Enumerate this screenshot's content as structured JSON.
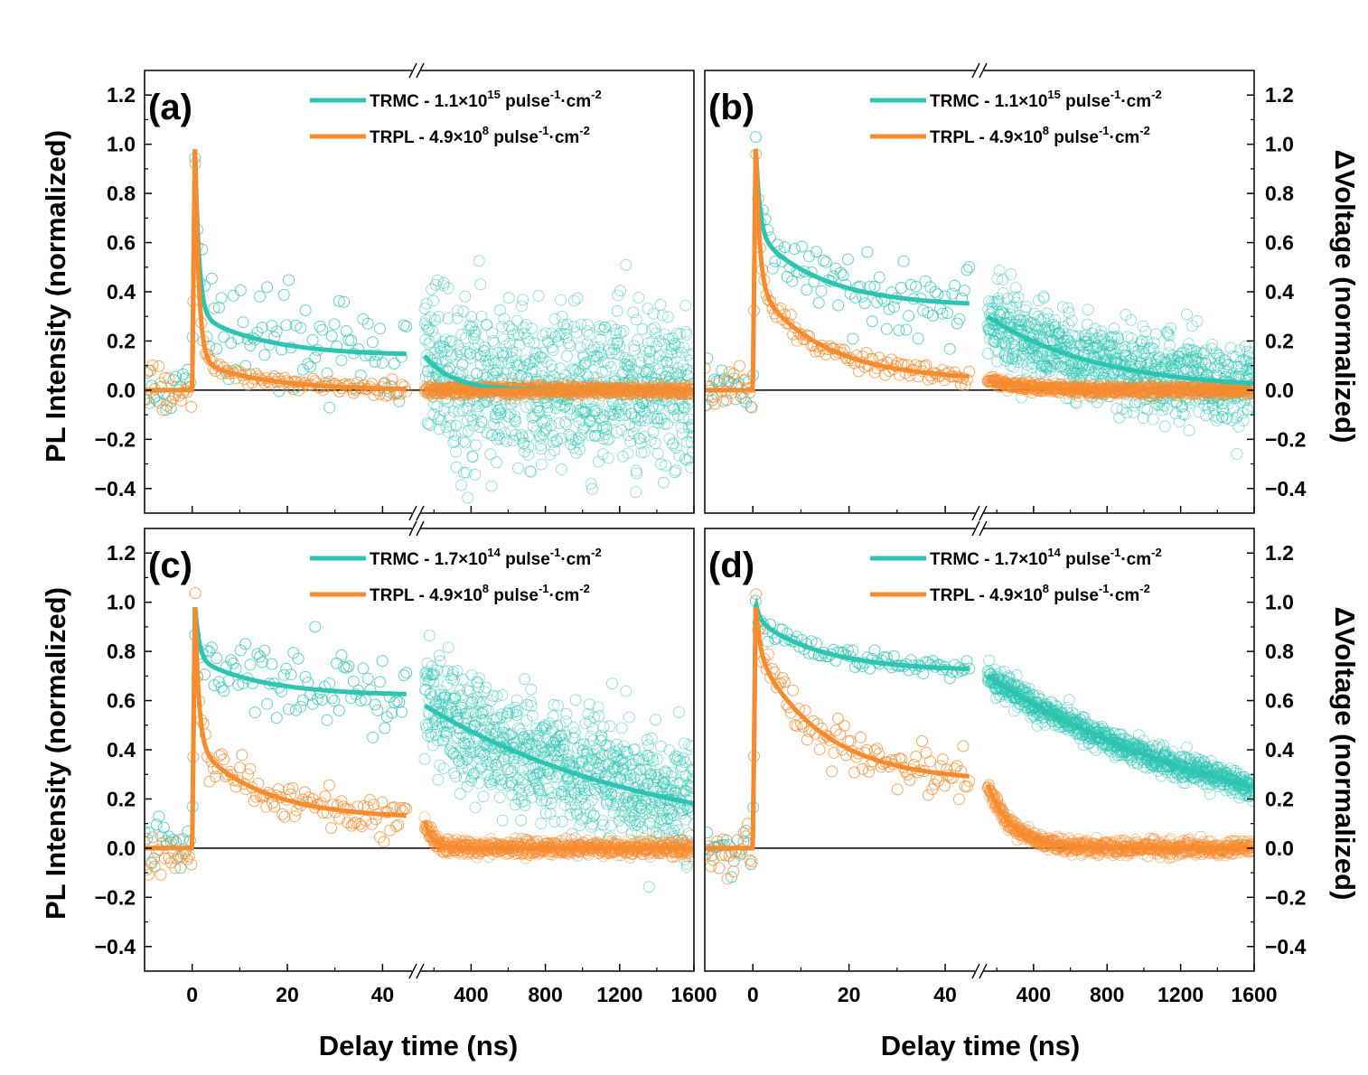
{
  "figure": {
    "x_axis_label": "Delay time (ns)",
    "y_axis_label_left": "PL Intensity (normalized)",
    "y_axis_label_right": "ΔVoltage (normalized)"
  },
  "colors": {
    "trmc": "#2ec4b2",
    "trpl": "#f78b2e"
  },
  "chart_data": [
    {
      "type": "scatter",
      "panel": "(a)",
      "legend": [
        {
          "series": "TRMC",
          "prefix": "TRMC - 1.1×10",
          "exp": "15",
          "suffix": " pulse",
          "exp2": "-1",
          "suffix2": "·cm",
          "exp3": "-2"
        },
        {
          "series": "TRPL",
          "prefix": "TRPL - 4.9×10",
          "exp": "8",
          "suffix": "  pulse",
          "exp2": "-1",
          "suffix2": "·cm",
          "exp3": "-2"
        }
      ],
      "x_segment1": {
        "range": [
          -10,
          46
        ],
        "ticks": [
          "0",
          "20",
          "40"
        ],
        "tick_values": [
          0,
          20,
          40
        ]
      },
      "x_segment2": {
        "range": [
          150,
          1600
        ],
        "ticks": [
          "400",
          "800",
          "1200",
          "1600"
        ],
        "tick_values": [
          400,
          800,
          1200,
          1600
        ]
      },
      "ylim": [
        -0.5,
        1.3
      ],
      "yticks": [
        "-0.4",
        "-0.2",
        "0.0",
        "0.2",
        "0.4",
        "0.6",
        "0.8",
        "1.0",
        "1.2"
      ],
      "series": [
        {
          "name": "TRMC",
          "plateau_seg1": 0.14,
          "seg2_start": 0.14,
          "seg2_tau_ns": 150,
          "noise_seg1": 0.12,
          "noise_seg2": 0.16
        },
        {
          "name": "TRPL",
          "plateau_seg1": 0.0,
          "seg2_start": 0.0,
          "seg2_tau_ns": 100,
          "noise_seg1": 0.015,
          "noise_seg2": 0.01
        }
      ]
    },
    {
      "type": "scatter",
      "panel": "(b)",
      "legend": [
        {
          "series": "TRMC",
          "prefix": "TRMC - 1.1×10",
          "exp": "15",
          "suffix": " pulse",
          "exp2": "-1",
          "suffix2": "·cm",
          "exp3": "-2"
        },
        {
          "series": "TRPL",
          "prefix": "TRPL - 4.9×10",
          "exp": "8",
          "suffix": "  pulse",
          "exp2": "-1",
          "suffix2": "·cm",
          "exp3": "-2"
        }
      ],
      "x_segment1": {
        "range": [
          -10,
          46
        ],
        "ticks": [
          "0",
          "20",
          "40"
        ],
        "tick_values": [
          0,
          20,
          40
        ]
      },
      "x_segment2": {
        "range": [
          150,
          1600
        ],
        "ticks": [
          "400",
          "800",
          "1200",
          "1600"
        ],
        "tick_values": [
          400,
          800,
          1200,
          1600
        ]
      },
      "ylim": [
        -0.5,
        1.3
      ],
      "yticks": [
        "-0.4",
        "-0.2",
        "0.0",
        "0.2",
        "0.4",
        "0.6",
        "0.8",
        "1.0",
        "1.2"
      ],
      "series": [
        {
          "name": "TRMC",
          "plateau_seg1": 0.34,
          "seg2_start": 0.3,
          "seg2_tau_ns": 600,
          "noise_seg1": 0.07,
          "noise_seg2": 0.08
        },
        {
          "name": "TRPL",
          "plateau_seg1": 0.04,
          "seg2_start": 0.04,
          "seg2_tau_ns": 200,
          "noise_seg1": 0.02,
          "noise_seg2": 0.01
        }
      ]
    },
    {
      "type": "scatter",
      "panel": "(c)",
      "legend": [
        {
          "series": "TRMC",
          "prefix": "TRMC - 1.7×10",
          "exp": "14",
          "suffix": " pulse",
          "exp2": "-1",
          "suffix2": "·cm",
          "exp3": "-2"
        },
        {
          "series": "TRPL",
          "prefix": "TRPL - 4.9×10",
          "exp": "8",
          "suffix": "  pulse",
          "exp2": "-1",
          "suffix2": "·cm",
          "exp3": "-2"
        }
      ],
      "x_segment1": {
        "range": [
          -10,
          46
        ],
        "ticks": [
          "0",
          "20",
          "40"
        ],
        "tick_values": [
          0,
          20,
          40
        ]
      },
      "x_segment2": {
        "range": [
          150,
          1600
        ],
        "ticks": [
          "400",
          "800",
          "1200",
          "1600"
        ],
        "tick_values": [
          400,
          800,
          1200,
          1600
        ]
      },
      "ylim": [
        -0.5,
        1.3
      ],
      "yticks": [
        "-0.4",
        "-0.2",
        "0.0",
        "0.2",
        "0.4",
        "0.6",
        "0.8",
        "1.0",
        "1.2"
      ],
      "series": [
        {
          "name": "TRMC",
          "plateau_seg1": 0.62,
          "seg2_start": 0.58,
          "seg2_tau_ns": 1250,
          "noise_seg1": 0.09,
          "noise_seg2": 0.12
        },
        {
          "name": "TRPL",
          "plateau_seg1": 0.12,
          "seg2_start": 0.11,
          "seg2_tau_ns": 40,
          "noise_seg1": 0.04,
          "noise_seg2": 0.015
        }
      ]
    },
    {
      "type": "scatter",
      "panel": "(d)",
      "legend": [
        {
          "series": "TRMC",
          "prefix": "TRMC - 1.7×10",
          "exp": "14",
          "suffix": " pulse",
          "exp2": "-1",
          "suffix2": "·cm",
          "exp3": "-2"
        },
        {
          "series": "TRPL",
          "prefix": "TRPL - 4.9×10",
          "exp": "8",
          "suffix": "  pulse",
          "exp2": "-1",
          "suffix2": "·cm",
          "exp3": "-2"
        }
      ],
      "x_segment1": {
        "range": [
          -10,
          46
        ],
        "ticks": [
          "0",
          "20",
          "40"
        ],
        "tick_values": [
          0,
          20,
          40
        ]
      },
      "x_segment2": {
        "range": [
          150,
          1600
        ],
        "ticks": [
          "400",
          "800",
          "1200",
          "1600"
        ],
        "tick_values": [
          400,
          800,
          1200,
          1600
        ]
      },
      "ylim": [
        -0.5,
        1.3
      ],
      "yticks": [
        "-0.4",
        "-0.2",
        "0.0",
        "0.2",
        "0.4",
        "0.6",
        "0.8",
        "1.0",
        "1.2"
      ],
      "series": [
        {
          "name": "TRMC",
          "plateau_seg1": 0.72,
          "seg2_start": 0.7,
          "seg2_tau_ns": 1400,
          "noise_seg1": 0.02,
          "noise_seg2": 0.025
        },
        {
          "name": "TRPL",
          "plateau_seg1": 0.27,
          "seg2_start": 0.26,
          "seg2_tau_ns": 130,
          "noise_seg1": 0.05,
          "noise_seg2": 0.015
        }
      ]
    }
  ]
}
